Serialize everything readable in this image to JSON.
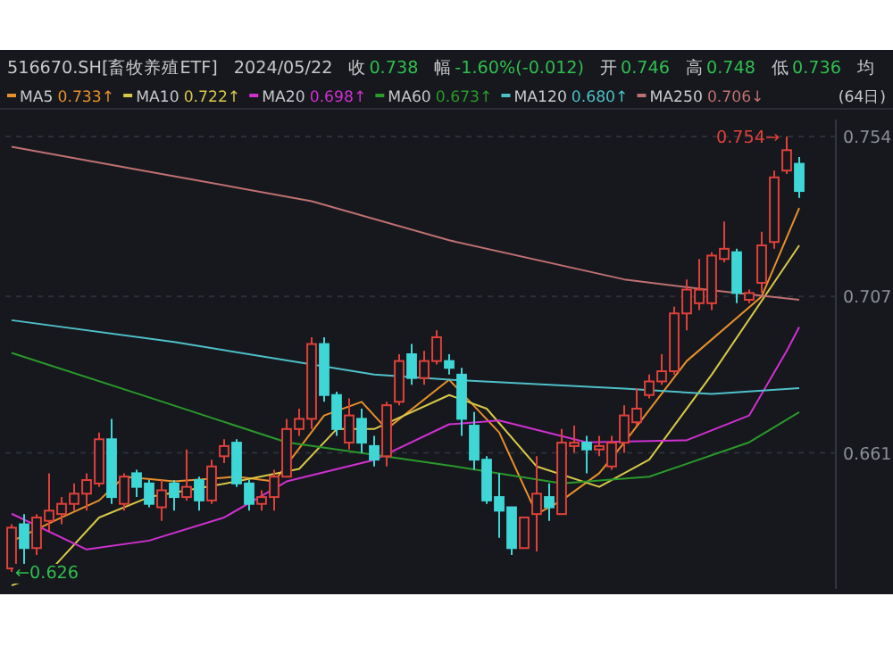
{
  "chart_data": {
    "type": "candlestick",
    "categories": [
      null,
      null,
      null,
      null,
      null,
      null,
      null,
      null,
      null,
      null,
      null,
      null,
      null,
      null,
      null,
      null,
      null,
      null,
      null,
      null,
      null,
      null,
      null,
      null,
      null,
      null,
      null,
      null,
      null,
      null,
      null,
      null,
      null,
      null,
      null,
      null,
      null,
      null,
      null,
      null,
      null,
      null,
      null,
      null,
      null,
      null,
      null,
      null,
      null,
      null,
      null,
      null,
      null,
      null,
      null,
      null,
      null,
      null,
      null,
      null,
      null,
      null,
      null,
      null
    ],
    "ohlc": [
      [
        0.627,
        0.64,
        0.626,
        0.639
      ],
      [
        0.64,
        0.643,
        0.628,
        0.633
      ],
      [
        0.633,
        0.643,
        0.631,
        0.642
      ],
      [
        0.641,
        0.655,
        0.638,
        0.644
      ],
      [
        0.643,
        0.648,
        0.64,
        0.646
      ],
      [
        0.646,
        0.652,
        0.644,
        0.649
      ],
      [
        0.649,
        0.655,
        0.644,
        0.653
      ],
      [
        0.652,
        0.667,
        0.651,
        0.665
      ],
      [
        0.665,
        0.671,
        0.646,
        0.648
      ],
      [
        0.646,
        0.655,
        0.644,
        0.654
      ],
      [
        0.655,
        0.656,
        0.648,
        0.651
      ],
      [
        0.652,
        0.653,
        0.645,
        0.646
      ],
      [
        0.645,
        0.653,
        0.641,
        0.65
      ],
      [
        0.652,
        0.653,
        0.644,
        0.648
      ],
      [
        0.648,
        0.662,
        0.647,
        0.651
      ],
      [
        0.653,
        0.654,
        0.644,
        0.647
      ],
      [
        0.647,
        0.659,
        0.646,
        0.657
      ],
      [
        0.66,
        0.665,
        0.658,
        0.663
      ],
      [
        0.664,
        0.665,
        0.651,
        0.652
      ],
      [
        0.652,
        0.653,
        0.644,
        0.646
      ],
      [
        0.646,
        0.65,
        0.644,
        0.648
      ],
      [
        0.648,
        0.656,
        0.644,
        0.654
      ],
      [
        0.654,
        0.671,
        0.654,
        0.668
      ],
      [
        0.668,
        0.674,
        0.666,
        0.671
      ],
      [
        0.671,
        0.695,
        0.668,
        0.693
      ],
      [
        0.693,
        0.695,
        0.676,
        0.678
      ],
      [
        0.678,
        0.679,
        0.666,
        0.668
      ],
      [
        0.664,
        0.677,
        0.662,
        0.672
      ],
      [
        0.671,
        0.674,
        0.661,
        0.664
      ],
      [
        0.663,
        0.666,
        0.657,
        0.659
      ],
      [
        0.66,
        0.676,
        0.657,
        0.675
      ],
      [
        0.676,
        0.69,
        0.675,
        0.688
      ],
      [
        0.69,
        0.693,
        0.681,
        0.683
      ],
      [
        0.683,
        0.691,
        0.681,
        0.688
      ],
      [
        0.688,
        0.697,
        0.687,
        0.695
      ],
      [
        0.688,
        0.69,
        0.684,
        0.686
      ],
      [
        0.684,
        0.686,
        0.666,
        0.671
      ],
      [
        0.669,
        0.673,
        0.656,
        0.659
      ],
      [
        0.659,
        0.66,
        0.646,
        0.647
      ],
      [
        0.648,
        0.655,
        0.636,
        0.644
      ],
      [
        0.645,
        0.645,
        0.631,
        0.633
      ],
      [
        0.633,
        0.642,
        0.633,
        0.642
      ],
      [
        0.643,
        0.66,
        0.632,
        0.649
      ],
      [
        0.648,
        0.652,
        0.641,
        0.645
      ],
      [
        0.643,
        0.668,
        0.643,
        0.664
      ],
      [
        0.663,
        0.669,
        0.661,
        0.664
      ],
      [
        0.664,
        0.666,
        0.655,
        0.662
      ],
      [
        0.662,
        0.666,
        0.66,
        0.663
      ],
      [
        0.657,
        0.666,
        0.656,
        0.664
      ],
      [
        0.664,
        0.675,
        0.661,
        0.672
      ],
      [
        0.67,
        0.68,
        0.669,
        0.674
      ],
      [
        0.678,
        0.684,
        0.677,
        0.682
      ],
      [
        0.682,
        0.69,
        0.681,
        0.685
      ],
      [
        0.685,
        0.704,
        0.684,
        0.702
      ],
      [
        0.702,
        0.712,
        0.697,
        0.709
      ],
      [
        0.705,
        0.718,
        0.703,
        0.709
      ],
      [
        0.705,
        0.72,
        0.703,
        0.719
      ],
      [
        0.718,
        0.729,
        0.717,
        0.721
      ],
      [
        0.72,
        0.721,
        0.705,
        0.708
      ],
      [
        0.706,
        0.709,
        0.705,
        0.708
      ],
      [
        0.711,
        0.726,
        0.708,
        0.722
      ],
      [
        0.723,
        0.744,
        0.721,
        0.742
      ],
      [
        0.744,
        0.754,
        0.743,
        0.75
      ],
      [
        0.746,
        0.748,
        0.736,
        0.738
      ]
    ],
    "series": [
      {
        "type": "line",
        "name": "MA5",
        "color": "#e8902a",
        "values": [
          0.635,
          null,
          null,
          null,
          0.642,
          null,
          null,
          0.647,
          null,
          0.654,
          null,
          null,
          null,
          0.6526,
          null,
          null,
          null,
          null,
          0.654,
          null,
          null,
          0.6526,
          null,
          null,
          null,
          0.672,
          null,
          null,
          0.676,
          null,
          0.668,
          null,
          null,
          null,
          null,
          0.6825,
          null,
          null,
          null,
          0.667,
          null,
          null,
          0.643,
          null,
          0.647,
          null,
          null,
          0.655,
          null,
          0.664,
          null,
          null,
          null,
          null,
          0.688,
          null,
          null,
          null,
          null,
          null,
          0.707,
          null,
          null,
          0.733
        ]
      },
      {
        "type": "line",
        "name": "MA10",
        "color": "#d8c848",
        "values": [
          0.622,
          null,
          null,
          0.626,
          null,
          null,
          null,
          0.642,
          null,
          null,
          null,
          0.648,
          null,
          null,
          null,
          null,
          null,
          null,
          0.6526,
          null,
          null,
          null,
          null,
          0.6563,
          null,
          null,
          0.668,
          null,
          null,
          0.668,
          null,
          null,
          null,
          null,
          null,
          0.678,
          null,
          null,
          0.674,
          null,
          null,
          null,
          0.657,
          null,
          null,
          null,
          null,
          0.651,
          null,
          null,
          null,
          0.659,
          null,
          null,
          null,
          null,
          0.684,
          null,
          null,
          null,
          null,
          null,
          null,
          0.722
        ]
      },
      {
        "type": "line",
        "name": "MA20",
        "color": "#d030d0",
        "values": [
          0.6431,
          null,
          null,
          null,
          null,
          null,
          0.6326,
          null,
          null,
          null,
          null,
          0.6352,
          null,
          null,
          null,
          null,
          null,
          0.642,
          null,
          null,
          null,
          null,
          0.6526,
          null,
          null,
          null,
          null,
          null,
          null,
          0.6589,
          null,
          null,
          null,
          null,
          null,
          0.6694,
          null,
          null,
          null,
          0.6705,
          null,
          null,
          null,
          null,
          null,
          null,
          0.6641,
          null,
          null,
          null,
          null,
          null,
          null,
          null,
          0.6647,
          null,
          null,
          null,
          null,
          0.672,
          null,
          null,
          0.691,
          0.698
        ]
      },
      {
        "type": "line",
        "name": "MA60",
        "color": "#2a9a2a",
        "values": [
          0.6904,
          null,
          null,
          null,
          null,
          null,
          null,
          null,
          null,
          null,
          null,
          0.6773,
          null,
          null,
          null,
          null,
          null,
          null,
          null,
          null,
          null,
          null,
          0.6641,
          null,
          null,
          null,
          null,
          null,
          null,
          null,
          null,
          null,
          null,
          null,
          null,
          0.6573,
          null,
          null,
          null,
          null,
          null,
          null,
          null,
          null,
          0.652,
          null,
          null,
          null,
          null,
          null,
          null,
          0.654,
          null,
          null,
          null,
          null,
          null,
          null,
          null,
          0.6641,
          null,
          null,
          null,
          0.673
        ]
      },
      {
        "type": "line",
        "name": "MA120",
        "color": "#4fc0c8",
        "values": [
          0.7,
          null,
          null,
          null,
          null,
          null,
          null,
          null,
          null,
          null,
          null,
          null,
          null,
          0.6936,
          null,
          null,
          null,
          null,
          null,
          null,
          null,
          null,
          null,
          null,
          null,
          null,
          null,
          null,
          null,
          0.684,
          null,
          null,
          null,
          null,
          null,
          0.6825,
          null,
          null,
          null,
          null,
          null,
          null,
          null,
          null,
          null,
          null,
          null,
          null,
          null,
          0.6799,
          null,
          null,
          null,
          null,
          null,
          null,
          0.6783,
          null,
          null,
          null,
          null,
          null,
          null,
          0.68
        ]
      },
      {
        "type": "line",
        "name": "MA250",
        "color": "#c07070",
        "values": [
          0.751,
          null,
          null,
          null,
          null,
          null,
          null,
          null,
          null,
          null,
          null,
          null,
          0.743,
          null,
          null,
          null,
          null,
          null,
          null,
          null,
          null,
          null,
          null,
          null,
          0.735,
          null,
          null,
          null,
          null,
          null,
          null,
          null,
          null,
          null,
          null,
          0.7235,
          null,
          null,
          null,
          null,
          null,
          null,
          null,
          null,
          null,
          null,
          null,
          null,
          null,
          0.712,
          null,
          null,
          null,
          null,
          null,
          null,
          0.7088,
          null,
          null,
          null,
          null,
          null,
          null,
          0.706
        ]
      }
    ],
    "ylim": [
      0.621,
      0.759
    ],
    "yticks": [
      0.754,
      0.707,
      0.661
    ],
    "grid": "y",
    "legend": "top left",
    "annotations": [
      "516670.SH[畜牧养殖ETF]",
      "2024/05/22",
      "收",
      "0.738",
      "幅",
      "-1.60%(-0.012)",
      "开",
      "0.746",
      "高",
      "0.748",
      "低",
      "0.736",
      "均",
      "0.733↑",
      "0.722↑",
      "0.698↑",
      "0.673↑",
      "0.680↑",
      "0.706↓",
      "(64日)",
      "0.754→",
      {
        "text": "←0.626",
        "y": 0.626
      }
    ]
  }
}
